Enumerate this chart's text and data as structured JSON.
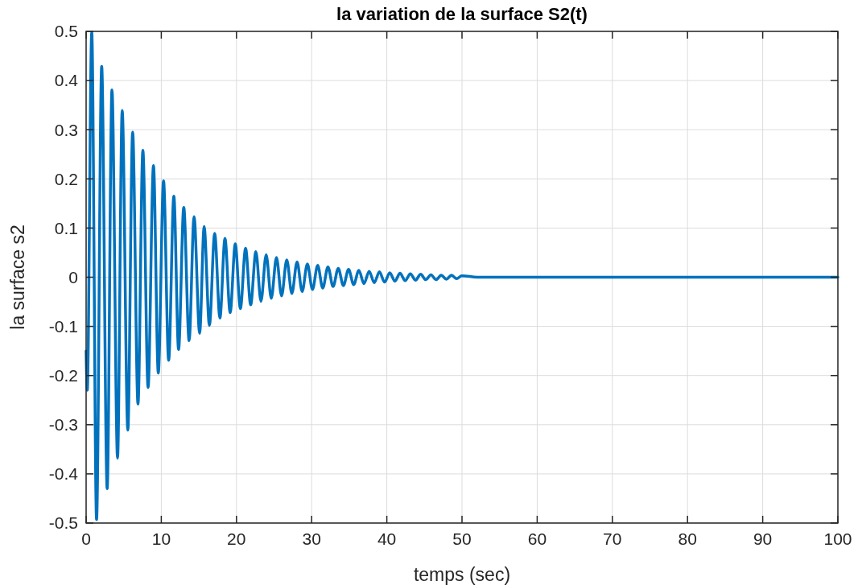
{
  "chart_data": {
    "type": "line",
    "title": "la variation de la surface S2(t)",
    "xlabel": "temps (sec)",
    "ylabel": "la surface s2",
    "x": [
      0,
      0.15,
      0.75,
      1.39,
      2.07,
      2.8,
      3.44,
      4.18,
      4.8,
      5.55,
      6.19,
      6.9,
      7.55,
      8.24,
      8.96,
      9.6,
      10.3,
      10.98,
      11.67,
      12.3,
      12.99,
      13.7,
      14.36,
      15.1,
      15.7,
      16.4,
      17.1,
      17.8,
      18.47,
      19.16,
      19.84,
      20.52,
      21.21,
      21.89,
      22.58,
      23.26,
      23.95,
      24.63,
      25.32,
      26.0,
      26.69,
      27.37,
      28.06,
      28.74,
      29.43,
      30.11,
      30.8,
      31.48,
      32.17,
      32.85,
      33.54,
      34.22,
      34.91,
      35.59,
      36.28,
      36.96,
      37.65,
      38.33,
      39.02,
      39.7,
      40.39,
      41.07,
      41.76,
      42.44,
      43.13,
      43.81,
      44.5,
      45.18,
      45.87,
      46.55,
      47.24,
      47.92,
      48.61,
      49.29,
      49.98,
      52,
      60,
      80,
      100
    ],
    "series": [
      {
        "color": "#0072bd",
        "values": [
          -0.15,
          -0.23,
          0.498,
          -0.493,
          0.429,
          -0.43,
          0.381,
          -0.368,
          0.339,
          -0.311,
          0.295,
          -0.258,
          0.258,
          -0.224,
          0.227,
          -0.195,
          0.196,
          -0.169,
          0.165,
          -0.147,
          0.142,
          -0.129,
          0.123,
          -0.114,
          0.103,
          -0.098,
          0.089,
          -0.083,
          0.079,
          -0.072,
          0.068,
          -0.064,
          0.059,
          -0.056,
          0.052,
          -0.049,
          0.046,
          -0.043,
          0.04,
          -0.038,
          0.035,
          -0.033,
          0.031,
          -0.029,
          0.027,
          -0.025,
          0.024,
          -0.022,
          0.021,
          -0.019,
          0.018,
          -0.017,
          0.016,
          -0.015,
          0.014,
          -0.013,
          0.012,
          -0.011,
          0.011,
          -0.01,
          0.009,
          -0.008,
          0.008,
          -0.007,
          0.007,
          -0.006,
          0.006,
          -0.005,
          0.005,
          -0.005,
          0.004,
          -0.004,
          0.004,
          -0.003,
          0.003,
          0,
          0,
          0,
          0
        ]
      }
    ],
    "xlim": [
      0,
      100
    ],
    "xticks": [
      0,
      10,
      20,
      30,
      40,
      50,
      60,
      70,
      80,
      90,
      100
    ],
    "ylim": [
      -0.5,
      0.5
    ],
    "yticks": [
      -0.5,
      -0.4,
      -0.3,
      -0.2,
      -0.1,
      0,
      0.1,
      0.2,
      0.3,
      0.4,
      0.5
    ],
    "grid": true,
    "marker": "none",
    "line_style": "solid"
  }
}
